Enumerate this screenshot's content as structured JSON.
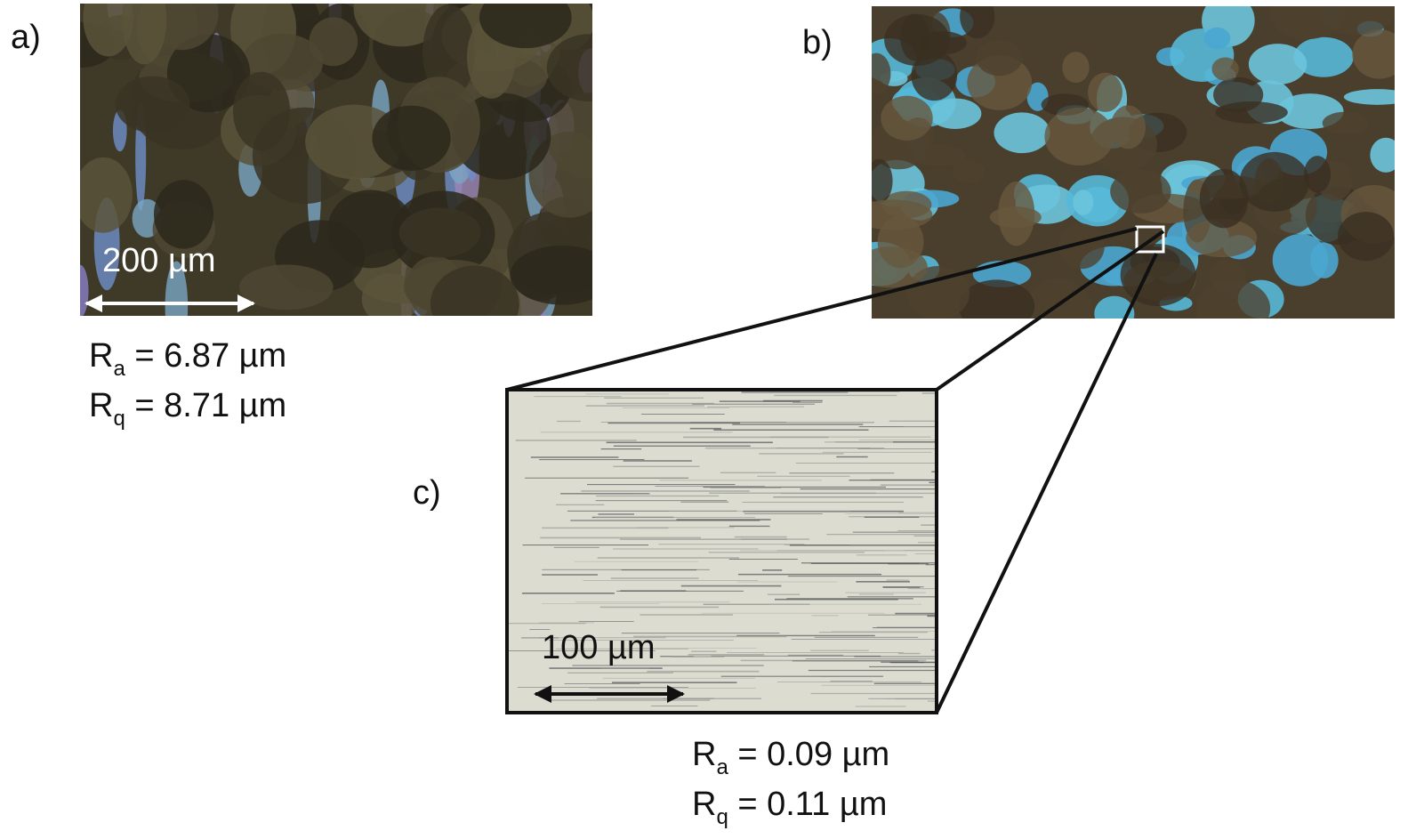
{
  "panels": [
    {
      "label": "a)",
      "scale_bar": "200 µm",
      "roughness": [
        {
          "symbol": "R",
          "subscript": "a",
          "value": " = 6.87 µm"
        },
        {
          "symbol": "R",
          "subscript": "q",
          "value": " = 8.71 µm"
        }
      ]
    },
    {
      "label": "b)"
    },
    {
      "label": "c)",
      "scale_bar": "100 µm",
      "roughness": [
        {
          "symbol": "R",
          "subscript": "a",
          "value": " = 0.09 µm"
        },
        {
          "symbol": "R",
          "subscript": "q",
          "value": " = 0.11 µm"
        }
      ]
    }
  ]
}
